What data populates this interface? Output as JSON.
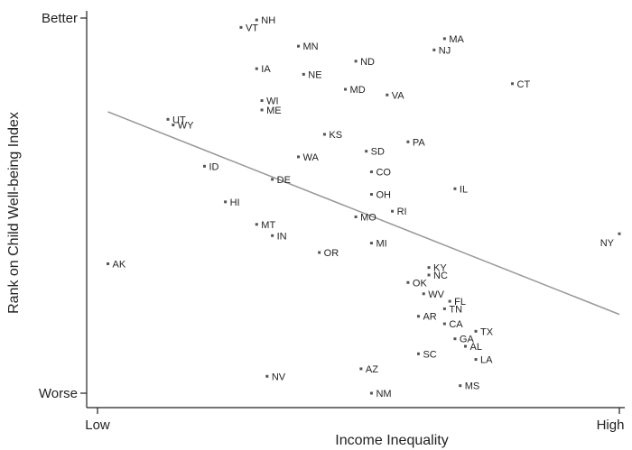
{
  "chart_data": {
    "type": "scatter",
    "title": "",
    "xlabel": "Income Inequality",
    "ylabel": "Rank on Child Well-being Index",
    "x_tick_labels": [
      "Low",
      "High"
    ],
    "y_tick_labels": [
      "Better",
      "Worse"
    ],
    "xlim": [
      0,
      1
    ],
    "ylim": [
      0,
      1
    ],
    "grid": false,
    "legend": "none",
    "trendline": {
      "start": [
        0.02,
        0.75
      ],
      "end": [
        1.0,
        0.21
      ]
    },
    "points": [
      {
        "label": "NH",
        "x": 0.305,
        "y": 0.995
      },
      {
        "label": "VT",
        "x": 0.275,
        "y": 0.975
      },
      {
        "label": "MN",
        "x": 0.385,
        "y": 0.925
      },
      {
        "label": "MA",
        "x": 0.665,
        "y": 0.945
      },
      {
        "label": "NJ",
        "x": 0.645,
        "y": 0.915
      },
      {
        "label": "ND",
        "x": 0.495,
        "y": 0.885
      },
      {
        "label": "IA",
        "x": 0.305,
        "y": 0.865
      },
      {
        "label": "NE",
        "x": 0.395,
        "y": 0.85
      },
      {
        "label": "CT",
        "x": 0.795,
        "y": 0.825
      },
      {
        "label": "MD",
        "x": 0.475,
        "y": 0.81
      },
      {
        "label": "VA",
        "x": 0.555,
        "y": 0.795
      },
      {
        "label": "WI",
        "x": 0.315,
        "y": 0.78
      },
      {
        "label": "ME",
        "x": 0.315,
        "y": 0.755
      },
      {
        "label": "UT",
        "x": 0.135,
        "y": 0.73
      },
      {
        "label": "WY",
        "x": 0.145,
        "y": 0.715
      },
      {
        "label": "KS",
        "x": 0.435,
        "y": 0.69
      },
      {
        "label": "PA",
        "x": 0.595,
        "y": 0.67
      },
      {
        "label": "SD",
        "x": 0.515,
        "y": 0.645
      },
      {
        "label": "WA",
        "x": 0.385,
        "y": 0.63
      },
      {
        "label": "ID",
        "x": 0.205,
        "y": 0.605
      },
      {
        "label": "CO",
        "x": 0.525,
        "y": 0.59
      },
      {
        "label": "DE",
        "x": 0.335,
        "y": 0.57
      },
      {
        "label": "IL",
        "x": 0.685,
        "y": 0.545
      },
      {
        "label": "OH",
        "x": 0.525,
        "y": 0.53
      },
      {
        "label": "HI",
        "x": 0.245,
        "y": 0.51
      },
      {
        "label": "RI",
        "x": 0.565,
        "y": 0.485
      },
      {
        "label": "MO",
        "x": 0.495,
        "y": 0.47
      },
      {
        "label": "MT",
        "x": 0.305,
        "y": 0.45
      },
      {
        "label": "IN",
        "x": 0.335,
        "y": 0.42
      },
      {
        "label": "MI",
        "x": 0.525,
        "y": 0.4
      },
      {
        "label": "NY",
        "x": 1.0,
        "y": 0.425
      },
      {
        "label": "OR",
        "x": 0.425,
        "y": 0.375
      },
      {
        "label": "AK",
        "x": 0.02,
        "y": 0.345
      },
      {
        "label": "KY",
        "x": 0.635,
        "y": 0.335
      },
      {
        "label": "NC",
        "x": 0.635,
        "y": 0.315
      },
      {
        "label": "OK",
        "x": 0.595,
        "y": 0.295
      },
      {
        "label": "WV",
        "x": 0.625,
        "y": 0.265
      },
      {
        "label": "FL",
        "x": 0.675,
        "y": 0.245
      },
      {
        "label": "TN",
        "x": 0.665,
        "y": 0.225
      },
      {
        "label": "AR",
        "x": 0.615,
        "y": 0.205
      },
      {
        "label": "CA",
        "x": 0.665,
        "y": 0.185
      },
      {
        "label": "TX",
        "x": 0.725,
        "y": 0.165
      },
      {
        "label": "GA",
        "x": 0.685,
        "y": 0.145
      },
      {
        "label": "AL",
        "x": 0.705,
        "y": 0.125
      },
      {
        "label": "SC",
        "x": 0.615,
        "y": 0.105
      },
      {
        "label": "LA",
        "x": 0.725,
        "y": 0.09
      },
      {
        "label": "AZ",
        "x": 0.505,
        "y": 0.065
      },
      {
        "label": "NV",
        "x": 0.325,
        "y": 0.045
      },
      {
        "label": "MS",
        "x": 0.695,
        "y": 0.02
      },
      {
        "label": "NM",
        "x": 0.525,
        "y": 0.0
      }
    ]
  }
}
